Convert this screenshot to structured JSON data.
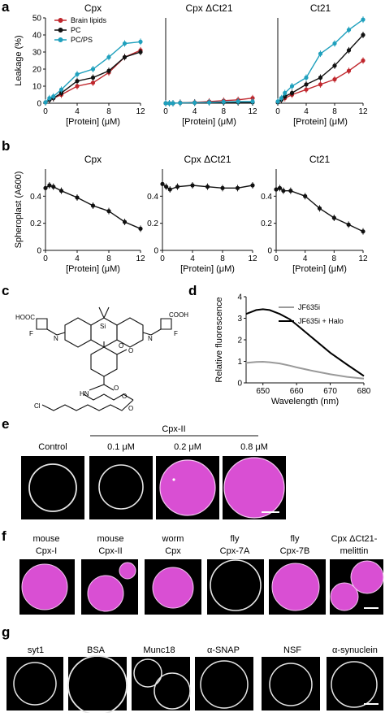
{
  "panels": {
    "a": "a",
    "b": "b",
    "c": "c",
    "d": "d",
    "e": "e",
    "f": "f",
    "g": "g"
  },
  "colors": {
    "brain": "#c0272d",
    "pc": "#111111",
    "pcps": "#1fa0bd",
    "halo": "#000000",
    "noHalo": "#9a9a9a",
    "magenta": "#d94fd3",
    "bg": "#000000"
  },
  "legend_a": [
    "Brain lipids",
    "PC",
    "PC/PS"
  ],
  "legend_d": [
    "JF635i",
    "JF635i + Halo"
  ],
  "chart_data": [
    {
      "type": "line",
      "title": "Cpx",
      "xlabel": "[Protein] (μM)",
      "ylabel": "Leakage (%)",
      "xlim": [
        0,
        12
      ],
      "ylim": [
        0,
        50
      ],
      "xticks": [
        "0",
        "4",
        "8",
        "12"
      ],
      "yticks": [
        "0",
        "10",
        "20",
        "30",
        "40",
        "50"
      ],
      "x": [
        0,
        0.5,
        1,
        2,
        4,
        6,
        8,
        10,
        12
      ],
      "series": [
        {
          "name": "Brain lipids",
          "color": "brain",
          "values": [
            0.5,
            2,
            3,
            5,
            10,
            12,
            18,
            27,
            31
          ]
        },
        {
          "name": "PC",
          "color": "pc",
          "values": [
            0.5,
            2,
            3,
            6,
            13,
            15,
            19,
            27,
            30
          ]
        },
        {
          "name": "PC/PS",
          "color": "pcps",
          "values": [
            0.5,
            3,
            4,
            8,
            17,
            20,
            27,
            35,
            36
          ]
        }
      ]
    },
    {
      "type": "line",
      "title": "Cpx ΔCt21",
      "xlabel": "[Protein] (μM)",
      "ylabel": "",
      "xlim": [
        0,
        12
      ],
      "ylim": [
        0,
        50
      ],
      "xticks": [
        "0",
        "4",
        "8",
        "12"
      ],
      "yticks": [],
      "x": [
        0,
        0.5,
        1,
        2,
        4,
        6,
        8,
        10,
        12
      ],
      "series": [
        {
          "name": "Brain lipids",
          "color": "brain",
          "values": [
            0,
            0,
            0,
            0.3,
            0.5,
            1,
            1.5,
            2,
            3
          ]
        },
        {
          "name": "PC",
          "color": "pc",
          "values": [
            0,
            0,
            0,
            0.2,
            0.3,
            0.5,
            0.5,
            0.5,
            0.5
          ]
        },
        {
          "name": "PC/PS",
          "color": "pcps",
          "values": [
            0,
            0,
            0,
            0.2,
            0.3,
            0.5,
            0.8,
            1,
            1
          ]
        }
      ]
    },
    {
      "type": "line",
      "title": "Ct21",
      "xlabel": "[Protein] (μM)",
      "ylabel": "",
      "xlim": [
        0,
        12
      ],
      "ylim": [
        0,
        50
      ],
      "xticks": [
        "0",
        "4",
        "8",
        "12"
      ],
      "yticks": [],
      "x": [
        0,
        0.5,
        1,
        2,
        4,
        6,
        8,
        10,
        12
      ],
      "series": [
        {
          "name": "Brain lipids",
          "color": "brain",
          "values": [
            0.5,
            2,
            3,
            5,
            8,
            11,
            14,
            19,
            25
          ]
        },
        {
          "name": "PC",
          "color": "pc",
          "values": [
            0.5,
            2,
            4,
            6,
            11,
            15,
            22,
            31,
            40
          ]
        },
        {
          "name": "PC/PS",
          "color": "pcps",
          "values": [
            1,
            3,
            6,
            10,
            15,
            29,
            35,
            43,
            49
          ]
        }
      ]
    },
    {
      "type": "line",
      "title": "Cpx",
      "xlabel": "[Protein] (μM)",
      "ylabel": "Spheroplast (A600)",
      "xlim": [
        0,
        12
      ],
      "ylim": [
        0,
        0.6
      ],
      "xticks": [
        "0",
        "4",
        "8",
        "12"
      ],
      "yticks": [
        "0",
        "0.2",
        "0.4"
      ],
      "x": [
        0,
        0.5,
        1,
        2,
        4,
        6,
        8,
        10,
        12
      ],
      "series": [
        {
          "name": "",
          "color": "pc",
          "values": [
            0.46,
            0.48,
            0.47,
            0.44,
            0.39,
            0.33,
            0.29,
            0.21,
            0.16
          ]
        }
      ]
    },
    {
      "type": "line",
      "title": "Cpx ΔCt21",
      "xlabel": "[Protein] (μM)",
      "ylabel": "",
      "xlim": [
        0,
        12
      ],
      "ylim": [
        0,
        0.6
      ],
      "xticks": [
        "0",
        "4",
        "8",
        "12"
      ],
      "yticks": [
        "0",
        "0.2",
        "0.4"
      ],
      "x": [
        0,
        0.5,
        1,
        2,
        4,
        6,
        8,
        10,
        12
      ],
      "series": [
        {
          "name": "",
          "color": "pc",
          "values": [
            0.49,
            0.47,
            0.45,
            0.47,
            0.48,
            0.47,
            0.46,
            0.46,
            0.48
          ]
        }
      ]
    },
    {
      "type": "line",
      "title": "Ct21",
      "xlabel": "[Protein] (μM)",
      "ylabel": "",
      "xlim": [
        0,
        12
      ],
      "ylim": [
        0,
        0.6
      ],
      "xticks": [
        "0",
        "4",
        "8",
        "12"
      ],
      "yticks": [
        "0",
        "0.2",
        "0.4"
      ],
      "x": [
        0,
        0.5,
        1,
        2,
        4,
        6,
        8,
        10,
        12
      ],
      "series": [
        {
          "name": "",
          "color": "pc",
          "values": [
            0.45,
            0.46,
            0.44,
            0.44,
            0.4,
            0.31,
            0.24,
            0.19,
            0.14
          ]
        }
      ]
    },
    {
      "type": "line",
      "title": "",
      "xlabel": "Wavelength (nm)",
      "ylabel": "Relative fluorescence",
      "xlim": [
        645,
        680
      ],
      "ylim": [
        0,
        4
      ],
      "xticks": [
        "650",
        "660",
        "670",
        "680"
      ],
      "yticks": [
        "0",
        "1",
        "2",
        "3",
        "4"
      ],
      "x": [
        645,
        648,
        650,
        652,
        655,
        658,
        660,
        665,
        670,
        675,
        680
      ],
      "series": [
        {
          "name": "JF635i",
          "color": "noHalo",
          "values": [
            0.93,
            0.97,
            0.98,
            0.96,
            0.9,
            0.8,
            0.72,
            0.55,
            0.4,
            0.28,
            0.2
          ]
        },
        {
          "name": "JF635i + Halo",
          "color": "halo",
          "values": [
            3.2,
            3.38,
            3.42,
            3.38,
            3.2,
            2.95,
            2.7,
            2.05,
            1.4,
            0.85,
            0.32
          ]
        }
      ]
    }
  ],
  "panel_c": {
    "labels": [
      "HOOC",
      "F",
      "N",
      "Si",
      "N",
      "COOH",
      "F",
      "O",
      "O",
      "O",
      "HN",
      "O",
      "O",
      "Cl"
    ]
  },
  "panel_e": {
    "group_label": "Cpx-II",
    "labels": [
      "Control",
      "0.1 μM",
      "0.2 μM",
      "0.8 μM"
    ]
  },
  "panel_f": {
    "labels": [
      [
        "mouse",
        "Cpx-I"
      ],
      [
        "mouse",
        "Cpx-II"
      ],
      [
        "worm",
        "Cpx"
      ],
      [
        "fly",
        "Cpx-7A"
      ],
      [
        "fly",
        "Cpx-7B"
      ],
      [
        "Cpx ΔCt21-",
        "melittin"
      ]
    ]
  },
  "panel_g": {
    "labels": [
      "syt1",
      "BSA",
      "Munc18",
      "α-SNAP",
      "NSF",
      "α-synuclein"
    ]
  }
}
